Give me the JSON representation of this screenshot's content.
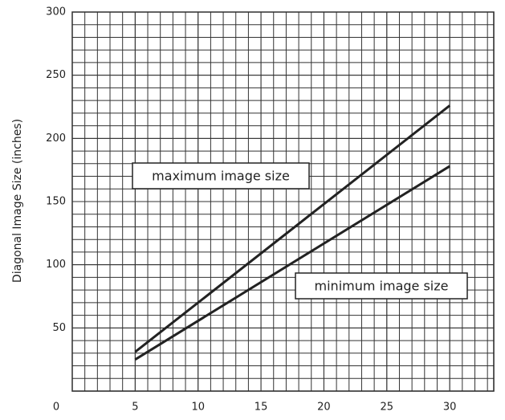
{
  "chart_data": {
    "type": "line",
    "ylabel": "Diagonal Image Size (inches)",
    "x": [
      5,
      30
    ],
    "series": [
      {
        "name": "maximum image size",
        "color": "#222222",
        "values": [
          31,
          226
        ]
      },
      {
        "name": "minimum image size",
        "color": "#222222",
        "values": [
          25,
          178
        ]
      }
    ],
    "xlim": [
      0,
      33.5
    ],
    "xticks": [
      0,
      5,
      10,
      15,
      20,
      25,
      30
    ],
    "ylim": [
      0,
      300
    ],
    "yticks": [
      50,
      100,
      150,
      200,
      250,
      300
    ],
    "grid": true
  }
}
